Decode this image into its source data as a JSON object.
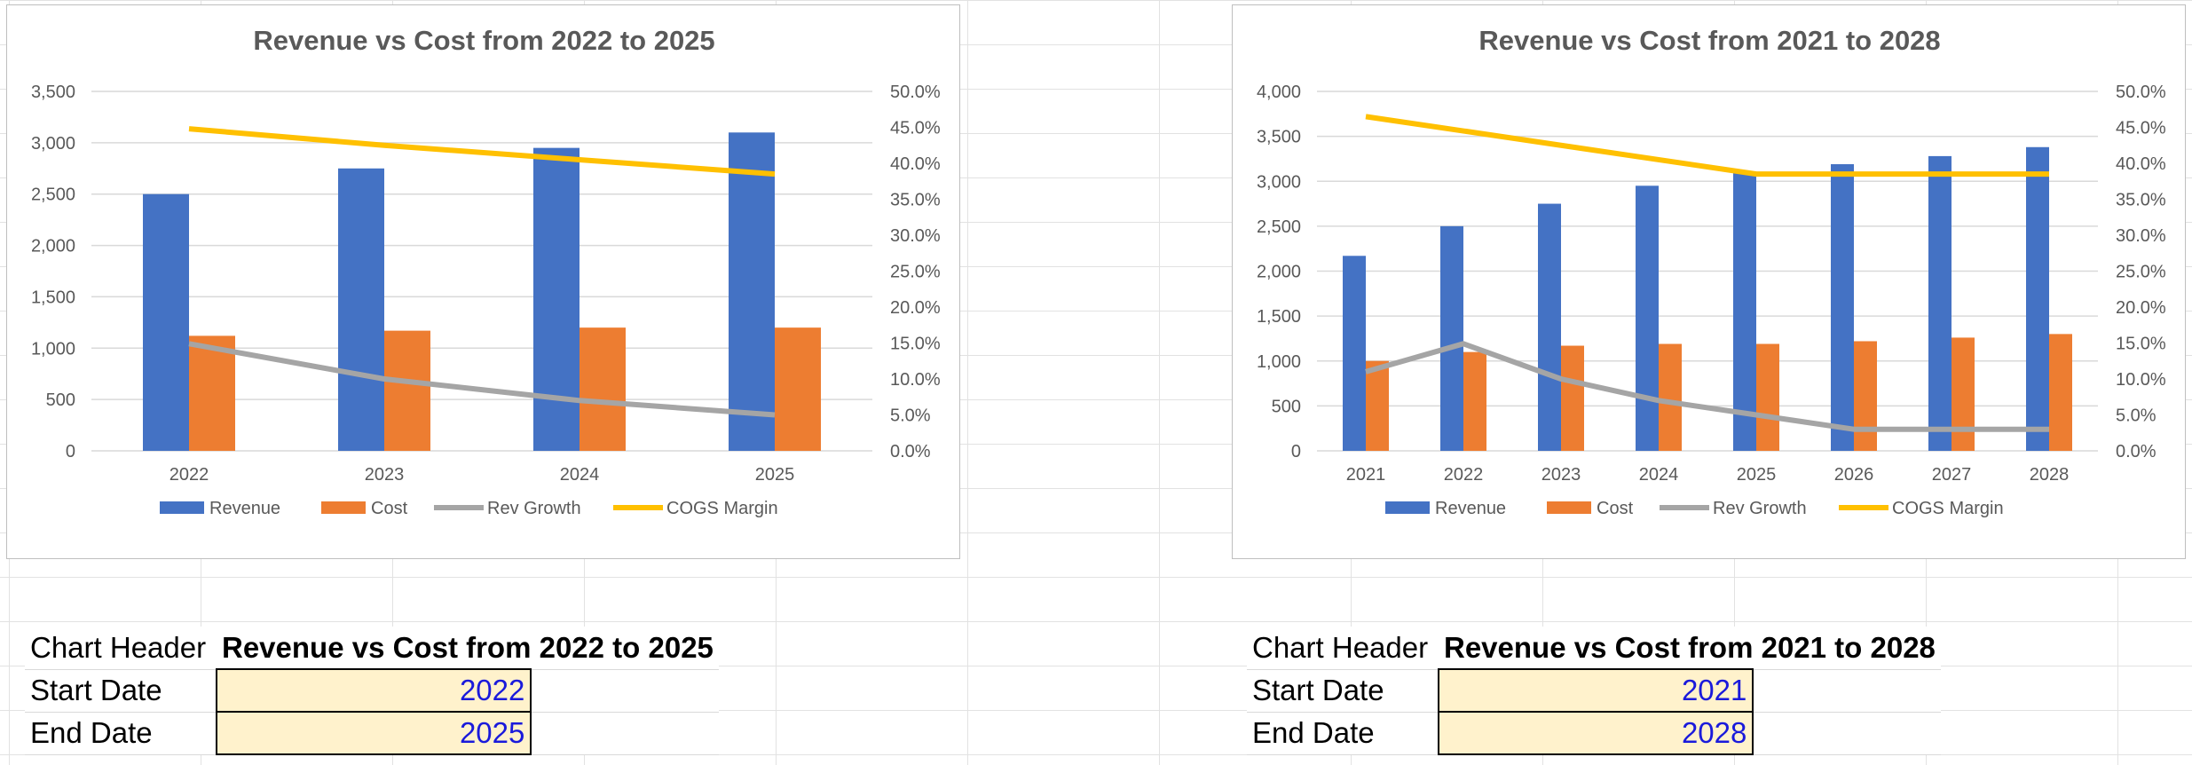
{
  "legend_labels": {
    "revenue": "Revenue",
    "cost": "Cost",
    "rev_growth": "Rev Growth",
    "cogs_margin": "COGS Margin"
  },
  "colors": {
    "revenue": "#4472c4",
    "cost": "#ed7d31",
    "rev_growth": "#a5a5a5",
    "cogs_margin": "#ffc000",
    "gridline": "#d9d9d9",
    "text": "#595959",
    "input_fill": "#fff2cc",
    "input_text": "#1a1adb"
  },
  "chart_data": [
    {
      "type": "bar",
      "title": "Revenue vs Cost from 2022 to 2025",
      "categories": [
        "2022",
        "2023",
        "2024",
        "2025"
      ],
      "series": [
        {
          "name": "Revenue",
          "type": "bar",
          "axis": "left",
          "values": [
            2500,
            2750,
            2950,
            3100
          ]
        },
        {
          "name": "Cost",
          "type": "bar",
          "axis": "left",
          "values": [
            1120,
            1170,
            1200,
            1200
          ]
        },
        {
          "name": "Rev Growth",
          "type": "line",
          "axis": "right",
          "values": [
            0.149,
            0.1,
            0.07,
            0.05
          ]
        },
        {
          "name": "COGS Margin",
          "type": "line",
          "axis": "right",
          "values": [
            0.448,
            0.425,
            0.405,
            0.385
          ]
        }
      ],
      "y_left": {
        "min": 0,
        "max": 3500,
        "step": 500,
        "ticks": [
          "0",
          "500",
          "1,000",
          "1,500",
          "2,000",
          "2,500",
          "3,000",
          "3,500"
        ]
      },
      "y_right": {
        "min": 0,
        "max": 0.5,
        "step": 0.05,
        "ticks": [
          "0.0%",
          "5.0%",
          "10.0%",
          "15.0%",
          "20.0%",
          "25.0%",
          "30.0%",
          "35.0%",
          "40.0%",
          "45.0%",
          "50.0%"
        ]
      },
      "grid": true,
      "legend": "bottom"
    },
    {
      "type": "bar",
      "title": "Revenue vs Cost from 2021 to 2028",
      "categories": [
        "2021",
        "2022",
        "2023",
        "2024",
        "2025",
        "2026",
        "2027",
        "2028"
      ],
      "series": [
        {
          "name": "Revenue",
          "type": "bar",
          "axis": "left",
          "values": [
            2170,
            2500,
            2750,
            2950,
            3100,
            3190,
            3280,
            3380
          ]
        },
        {
          "name": "Cost",
          "type": "bar",
          "axis": "left",
          "values": [
            1000,
            1100,
            1170,
            1190,
            1190,
            1220,
            1260,
            1300
          ]
        },
        {
          "name": "Rev Growth",
          "type": "line",
          "axis": "right",
          "values": [
            0.11,
            0.149,
            0.1,
            0.07,
            0.05,
            0.03,
            0.03,
            0.03
          ]
        },
        {
          "name": "COGS Margin",
          "type": "line",
          "axis": "right",
          "values": [
            0.465,
            0.445,
            0.425,
            0.405,
            0.385,
            0.385,
            0.385,
            0.385
          ]
        }
      ],
      "y_left": {
        "min": 0,
        "max": 4000,
        "step": 500,
        "ticks": [
          "0",
          "500",
          "1,000",
          "1,500",
          "2,000",
          "2,500",
          "3,000",
          "3,500",
          "4,000"
        ]
      },
      "y_right": {
        "min": 0,
        "max": 0.5,
        "step": 0.05,
        "ticks": [
          "0.0%",
          "5.0%",
          "10.0%",
          "15.0%",
          "20.0%",
          "25.0%",
          "30.0%",
          "35.0%",
          "40.0%",
          "45.0%",
          "50.0%"
        ]
      },
      "grid": true,
      "legend": "bottom"
    }
  ],
  "input_tables": [
    {
      "header_label": "Chart Header",
      "header_value": "Revenue vs Cost from 2022 to 2025",
      "start_label": "Start Date",
      "start_value": "2022",
      "end_label": "End Date",
      "end_value": "2025"
    },
    {
      "header_label": "Chart Header",
      "header_value": "Revenue vs Cost from 2021 to 2028",
      "start_label": "Start Date",
      "start_value": "2021",
      "end_label": "End Date",
      "end_value": "2028"
    }
  ]
}
